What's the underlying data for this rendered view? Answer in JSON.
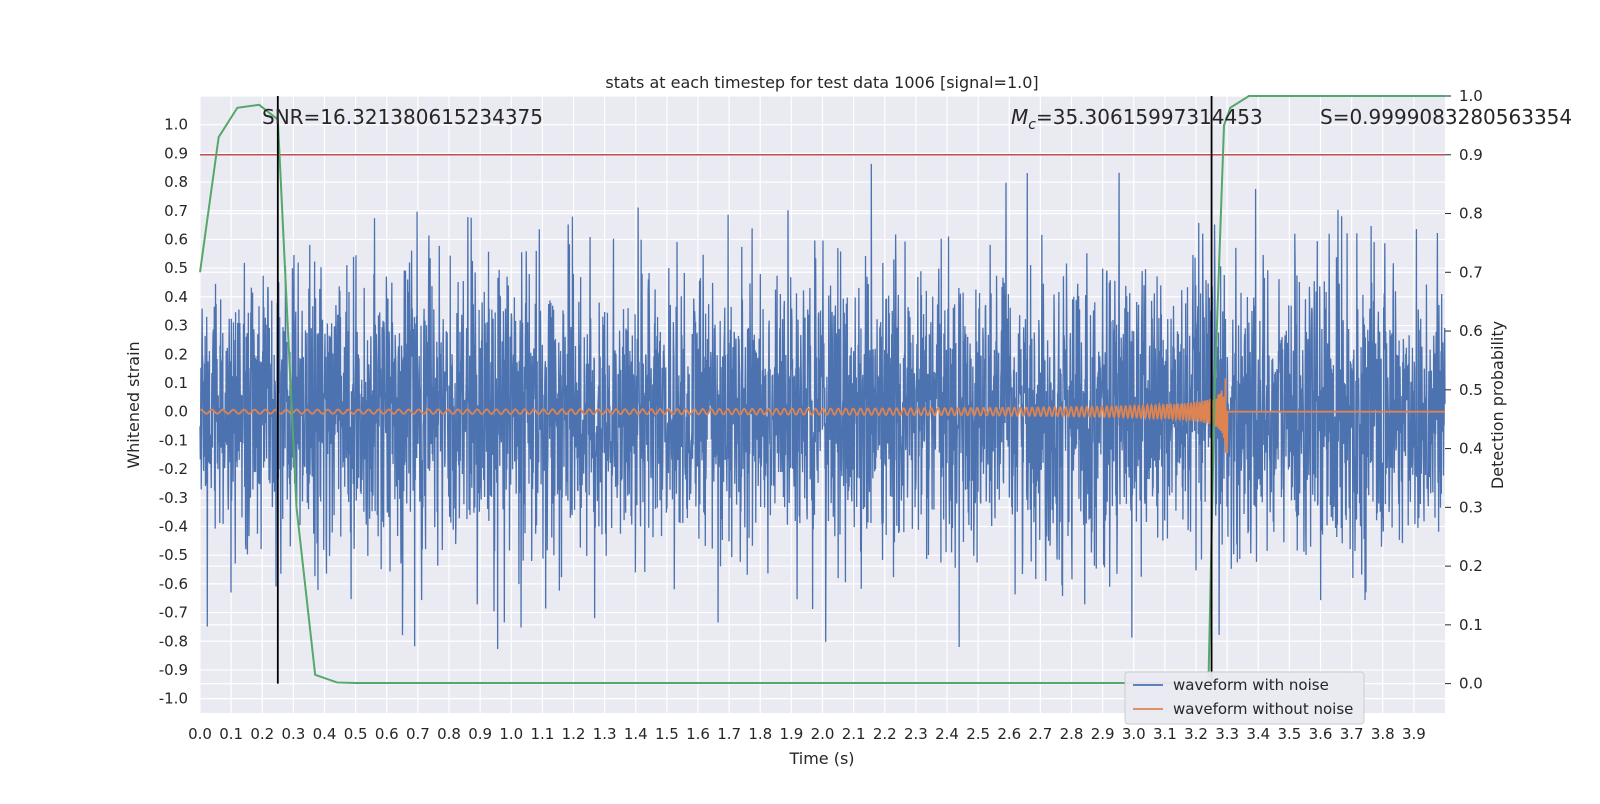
{
  "chart_data": {
    "type": "line",
    "title": "stats at each timestep for test data 1006 [signal=1.0]",
    "xlabel": "Time (s)",
    "ylabel_left": "Whitened strain",
    "ylabel_right": "Detection probability",
    "xlim": [
      0.0,
      4.0
    ],
    "ylim_left": [
      -1.05,
      1.1
    ],
    "ylim_right": [
      -0.05,
      1.0
    ],
    "x_ticks": [
      "0.0",
      "0.1",
      "0.2",
      "0.3",
      "0.4",
      "0.5",
      "0.6",
      "0.7",
      "0.8",
      "0.9",
      "1.0",
      "1.1",
      "1.2",
      "1.3",
      "1.4",
      "1.5",
      "1.6",
      "1.7",
      "1.8",
      "1.9",
      "2.0",
      "2.1",
      "2.2",
      "2.3",
      "2.4",
      "2.5",
      "2.6",
      "2.7",
      "2.8",
      "2.9",
      "3.0",
      "3.1",
      "3.2",
      "3.3",
      "3.4",
      "3.5",
      "3.6",
      "3.7",
      "3.8",
      "3.9"
    ],
    "y_ticks_left": [
      "1.0",
      "0.9",
      "0.8",
      "0.7",
      "0.6",
      "0.5",
      "0.4",
      "0.3",
      "0.2",
      "0.1",
      "0.0",
      "-0.1",
      "-0.2",
      "-0.3",
      "-0.4",
      "-0.5",
      "-0.6",
      "-0.7",
      "-0.8",
      "-0.9",
      "-1.0"
    ],
    "y_ticks_right": [
      "1.0",
      "0.9",
      "0.8",
      "0.7",
      "0.6",
      "0.5",
      "0.4",
      "0.3",
      "0.2",
      "0.1",
      "0.0"
    ],
    "grid": true,
    "legend_position": "bottom-right",
    "annotations": {
      "snr": "SNR=16.321380615234375",
      "mc_symbol": "M",
      "mc_sub": "c",
      "mc_value": "=35.30615997314453",
      "s": "S=0.9999083280563354"
    },
    "threshold_right": 0.9,
    "vlines_x": [
      0.25,
      3.25
    ],
    "series": [
      {
        "name": "waveform with noise",
        "color": "#4c72b0",
        "axis": "left",
        "style": "noise",
        "amplitude_hint": 0.45
      },
      {
        "name": "waveform without noise",
        "color": "#dd8452",
        "axis": "left",
        "style": "chirp",
        "merger_time": 3.3,
        "peak_amplitude": 0.8
      },
      {
        "axis": "right",
        "color": "#55a868",
        "x": [
          0.0,
          0.06,
          0.12,
          0.19,
          0.25,
          0.31,
          0.37,
          0.44,
          0.5,
          0.75,
          1.0,
          1.5,
          2.0,
          2.5,
          3.0,
          3.24,
          3.26,
          3.29,
          3.31,
          3.37,
          3.45,
          3.6,
          3.8,
          4.0
        ],
        "values": [
          0.7,
          0.93,
          0.98,
          0.985,
          0.96,
          0.3,
          0.015,
          0.002,
          0.001,
          0.001,
          0.001,
          0.001,
          0.001,
          0.001,
          0.001,
          0.001,
          0.5,
          0.95,
          0.98,
          1.0,
          1.0,
          1.0,
          1.0,
          1.0
        ]
      }
    ]
  }
}
